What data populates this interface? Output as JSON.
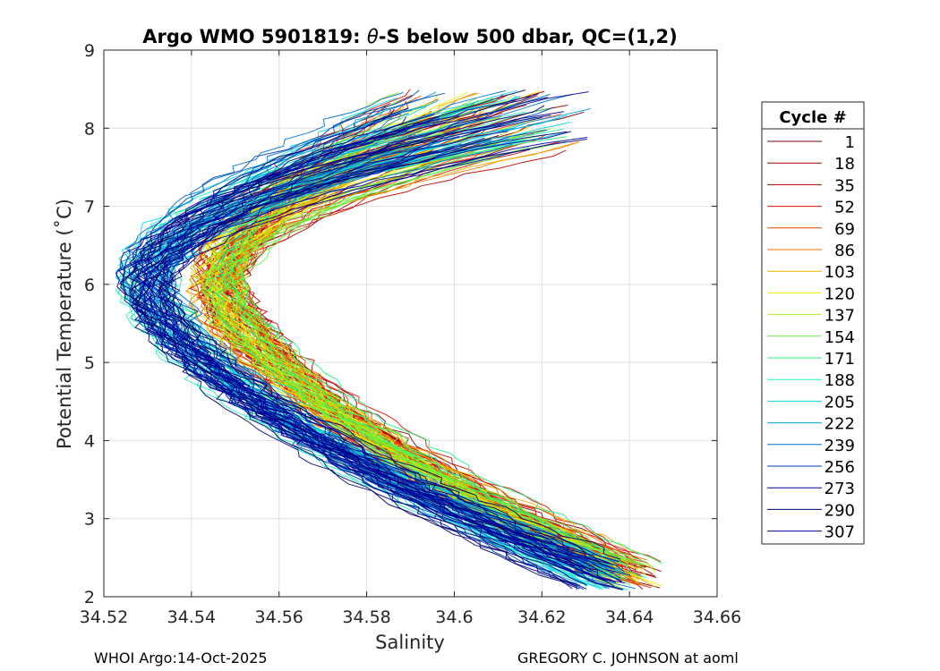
{
  "chart_data": {
    "type": "line",
    "title_prefix": "Argo WMO 5901819: ",
    "title_theta": "θ",
    "title_suffix": "-S below 500 dbar,  QC=(1,2)",
    "xlabel": "Salinity",
    "ylabel": "Potential Temperature (˚C)",
    "xlim": [
      34.52,
      34.66
    ],
    "ylim": [
      2,
      9
    ],
    "xticks": [
      "34.52",
      "34.54",
      "34.56",
      "34.58",
      "34.6",
      "34.62",
      "34.64",
      "34.66"
    ],
    "yticks": [
      "2",
      "3",
      "4",
      "5",
      "6",
      "7",
      "8",
      "9"
    ],
    "grid": true,
    "legend": {
      "title": "Cycle #",
      "position": "right",
      "entries": [
        {
          "label": "1",
          "color": "#800000"
        },
        {
          "label": "18",
          "color": "#a00000"
        },
        {
          "label": "35",
          "color": "#c00000"
        },
        {
          "label": "52",
          "color": "#e01000"
        },
        {
          "label": "69",
          "color": "#f04000"
        },
        {
          "label": "86",
          "color": "#f07000"
        },
        {
          "label": "103",
          "color": "#f0b000"
        },
        {
          "label": "120",
          "color": "#f0f000"
        },
        {
          "label": "137",
          "color": "#b0f020"
        },
        {
          "label": "154",
          "color": "#60f040"
        },
        {
          "label": "171",
          "color": "#20f080"
        },
        {
          "label": "188",
          "color": "#20f0c0"
        },
        {
          "label": "205",
          "color": "#00d8f0"
        },
        {
          "label": "222",
          "color": "#00a0e0"
        },
        {
          "label": "239",
          "color": "#0070d0"
        },
        {
          "label": "256",
          "color": "#0040b0"
        },
        {
          "label": "273",
          "color": "#000090"
        },
        {
          "label": "290",
          "color": "#000070"
        },
        {
          "label": "307",
          "color": "#00009c"
        }
      ]
    },
    "profile_model": {
      "description": "Typical θ-S curve: salinity minimum near θ=6°C, salinity rising toward 8.5°C and toward 2.1°C",
      "s_min": 34.548,
      "theta_at_smin": 6.0,
      "upper_end": {
        "theta": 8.4,
        "salinity": 34.615
      },
      "lower_end": {
        "theta": 2.1,
        "salinity": 34.635
      },
      "cycles_total": 307
    }
  },
  "footer": {
    "left": "WHOI Argo:14-Oct-2025",
    "right": "GREGORY C. JOHNSON at aoml"
  }
}
